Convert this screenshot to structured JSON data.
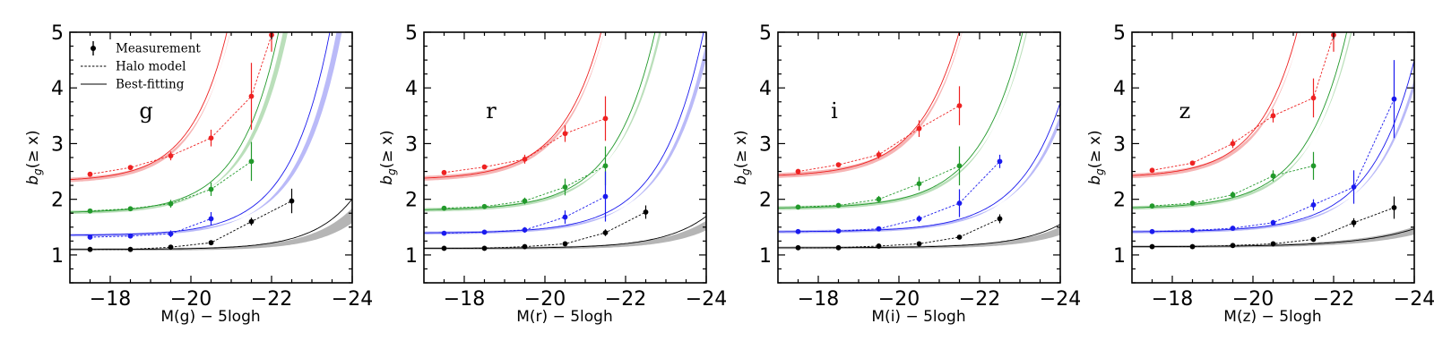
{
  "figure": {
    "ylabel_main": "b",
    "ylabel_sub": "g",
    "ylabel_rest": "(≥ x)",
    "legend": {
      "measurement": "Measurement",
      "halo": "Halo model",
      "best": "Best-fitting"
    }
  },
  "colors": {
    "red": "#ee2222",
    "green": "#22992b",
    "blue": "#1a1aee",
    "black": "#000000",
    "band_red": "#f4a0a0",
    "band_green": "#a6d6a6",
    "band_blue": "#a6a6f6",
    "band_black": "#a0a0a0"
  },
  "chart_data": [
    {
      "type": "line",
      "band": "g",
      "title": "",
      "xlabel": "M(g) − 5logh",
      "ylabel": "b_g(≥ x)",
      "xlim": [
        -17,
        -24
      ],
      "ylim": [
        0.5,
        5
      ],
      "xticks": [
        -18,
        -20,
        -22,
        -24
      ],
      "xtick_labels": [
        "−18",
        "−20",
        "−22",
        "−24"
      ],
      "yticks": [
        1,
        2,
        3,
        4,
        5
      ],
      "ytick_labels": [
        "1",
        "2",
        "3",
        "4",
        "5"
      ],
      "series": [
        {
          "name": "red",
          "color": "red",
          "band_color": "band_red",
          "x": [
            -17.5,
            -18.5,
            -19.5,
            -20.5,
            -21.5,
            -22.0
          ],
          "y": [
            2.45,
            2.57,
            2.78,
            3.1,
            3.85,
            4.95
          ],
          "err": [
            0.03,
            0.04,
            0.08,
            0.15,
            0.6,
            0.3
          ],
          "fit": {
            "a": 2.38,
            "c": 0.06,
            "k": 1.12,
            "x0": -17.5
          },
          "band": {
            "lo_factor": 0.93,
            "hi_factor": 1.18,
            "hi_shift": 0.25
          }
        },
        {
          "name": "green",
          "color": "green",
          "band_color": "band_green",
          "x": [
            -17.5,
            -18.5,
            -19.5,
            -20.5,
            -21.5
          ],
          "y": [
            1.79,
            1.83,
            1.92,
            2.18,
            2.68
          ],
          "err": [
            0.03,
            0.04,
            0.07,
            0.12,
            0.35
          ],
          "fit": {
            "a": 1.78,
            "c": 0.024,
            "k": 1.05,
            "x0": -17.5
          },
          "band": {
            "lo_factor": 0.9,
            "hi_factor": 1.25,
            "hi_shift": 0.45
          }
        },
        {
          "name": "blue",
          "color": "blue",
          "band_color": "band_blue",
          "x": [
            -17.5,
            -18.5,
            -19.5,
            -20.5
          ],
          "y": [
            1.32,
            1.34,
            1.38,
            1.65
          ],
          "err": [
            0.02,
            0.03,
            0.06,
            0.12
          ],
          "fit": {
            "a": 1.36,
            "c": 0.0085,
            "k": 1.02,
            "x0": -17.5
          },
          "band": {
            "lo_factor": 0.85,
            "hi_factor": 1.35,
            "hi_shift": 0.6
          }
        },
        {
          "name": "black",
          "color": "black",
          "band_color": "band_black",
          "x": [
            -17.5,
            -18.5,
            -19.5,
            -20.5,
            -21.5,
            -22.5
          ],
          "y": [
            1.1,
            1.1,
            1.14,
            1.22,
            1.6,
            1.97
          ],
          "err": [
            0.02,
            0.02,
            0.03,
            0.04,
            0.07,
            0.22
          ],
          "fit": {
            "a": 1.1,
            "c": 0.0012,
            "k": 1.02,
            "x0": -17.5
          },
          "band": {
            "lo_factor": 0.55,
            "hi_factor": 1.8,
            "hi_shift": 0.8
          }
        }
      ]
    },
    {
      "type": "line",
      "band": "r",
      "title": "",
      "xlabel": "M(r) − 5logh",
      "ylabel": "b_g(≥ x)",
      "xlim": [
        -17,
        -24
      ],
      "ylim": [
        0.5,
        5
      ],
      "xticks": [
        -18,
        -20,
        -22,
        -24
      ],
      "xtick_labels": [
        "−18",
        "−20",
        "−22",
        "−24"
      ],
      "yticks": [
        1,
        2,
        3,
        4,
        5
      ],
      "ytick_labels": [
        "1",
        "2",
        "3",
        "4",
        "5"
      ],
      "series": [
        {
          "name": "red",
          "color": "red",
          "band_color": "band_red",
          "x": [
            -17.5,
            -18.5,
            -19.5,
            -20.5,
            -21.5
          ],
          "y": [
            2.48,
            2.58,
            2.72,
            3.18,
            3.45
          ],
          "err": [
            0.03,
            0.04,
            0.08,
            0.15,
            0.4
          ],
          "fit": {
            "a": 2.4,
            "c": 0.05,
            "k": 1.02,
            "x0": -17.5
          },
          "band": {
            "lo_factor": 0.94,
            "hi_factor": 1.12,
            "hi_shift": 0.2
          }
        },
        {
          "name": "green",
          "color": "green",
          "band_color": "band_green",
          "x": [
            -17.5,
            -18.5,
            -19.5,
            -20.5,
            -21.5
          ],
          "y": [
            1.84,
            1.87,
            1.97,
            2.22,
            2.6
          ],
          "err": [
            0.03,
            0.04,
            0.06,
            0.15,
            0.35
          ],
          "fit": {
            "a": 1.82,
            "c": 0.019,
            "k": 0.98,
            "x0": -17.5
          },
          "band": {
            "lo_factor": 0.92,
            "hi_factor": 1.2,
            "hi_shift": 0.35
          }
        },
        {
          "name": "blue",
          "color": "blue",
          "band_color": "band_blue",
          "x": [
            -17.5,
            -18.5,
            -19.5,
            -20.5,
            -21.5
          ],
          "y": [
            1.39,
            1.41,
            1.45,
            1.68,
            2.05
          ],
          "err": [
            0.02,
            0.03,
            0.05,
            0.12,
            0.45
          ],
          "fit": {
            "a": 1.4,
            "c": 0.008,
            "k": 0.95,
            "x0": -17.5
          },
          "band": {
            "lo_factor": 0.9,
            "hi_factor": 1.3,
            "hi_shift": 0.5
          }
        },
        {
          "name": "black",
          "color": "black",
          "band_color": "band_black",
          "x": [
            -17.5,
            -18.5,
            -19.5,
            -20.5,
            -21.5,
            -22.5
          ],
          "y": [
            1.12,
            1.12,
            1.15,
            1.2,
            1.4,
            1.77
          ],
          "err": [
            0.02,
            0.02,
            0.03,
            0.04,
            0.06,
            0.12
          ],
          "fit": {
            "a": 1.12,
            "c": 0.0012,
            "k": 0.95,
            "x0": -17.5
          },
          "band": {
            "lo_factor": 0.6,
            "hi_factor": 1.6,
            "hi_shift": 0.7
          }
        }
      ]
    },
    {
      "type": "line",
      "band": "i",
      "title": "",
      "xlabel": "M(i) − 5logh",
      "ylabel": "b_g(≥ x)",
      "xlim": [
        -17,
        -24
      ],
      "ylim": [
        0.5,
        5
      ],
      "xticks": [
        -18,
        -20,
        -22,
        -24
      ],
      "xtick_labels": [
        "−18",
        "−20",
        "−22",
        "−24"
      ],
      "yticks": [
        1,
        2,
        3,
        4,
        5
      ],
      "ytick_labels": [
        "1",
        "2",
        "3",
        "4",
        "5"
      ],
      "series": [
        {
          "name": "red",
          "color": "red",
          "band_color": "band_red",
          "x": [
            -17.5,
            -18.5,
            -19.5,
            -20.5,
            -21.5
          ],
          "y": [
            2.5,
            2.62,
            2.8,
            3.27,
            3.68
          ],
          "err": [
            0.03,
            0.04,
            0.07,
            0.15,
            0.35
          ],
          "fit": {
            "a": 2.45,
            "c": 0.048,
            "k": 1.0,
            "x0": -17.5
          },
          "band": {
            "lo_factor": 0.94,
            "hi_factor": 1.12,
            "hi_shift": 0.2
          }
        },
        {
          "name": "green",
          "color": "green",
          "band_color": "band_green",
          "x": [
            -17.5,
            -18.5,
            -19.5,
            -20.5,
            -21.5
          ],
          "y": [
            1.86,
            1.89,
            2.0,
            2.28,
            2.6
          ],
          "err": [
            0.03,
            0.04,
            0.06,
            0.12,
            0.35
          ],
          "fit": {
            "a": 1.85,
            "c": 0.016,
            "k": 0.95,
            "x0": -17.5
          },
          "band": {
            "lo_factor": 0.93,
            "hi_factor": 1.18,
            "hi_shift": 0.3
          }
        },
        {
          "name": "blue",
          "color": "blue",
          "band_color": "band_blue",
          "x": [
            -17.5,
            -18.5,
            -19.5,
            -20.5,
            -21.5,
            -22.5
          ],
          "y": [
            1.42,
            1.43,
            1.47,
            1.65,
            1.93,
            2.68
          ],
          "err": [
            0.02,
            0.03,
            0.04,
            0.06,
            0.25,
            0.12
          ],
          "fit": {
            "a": 1.42,
            "c": 0.0055,
            "k": 0.93,
            "x0": -17.5
          },
          "band": {
            "lo_factor": 0.92,
            "hi_factor": 1.2,
            "hi_shift": 0.4
          }
        },
        {
          "name": "black",
          "color": "black",
          "band_color": "band_black",
          "x": [
            -17.5,
            -18.5,
            -19.5,
            -20.5,
            -21.5,
            -22.5
          ],
          "y": [
            1.13,
            1.13,
            1.16,
            1.2,
            1.32,
            1.65
          ],
          "err": [
            0.02,
            0.02,
            0.02,
            0.03,
            0.04,
            0.08
          ],
          "fit": {
            "a": 1.13,
            "c": 0.001,
            "k": 0.93,
            "x0": -17.5
          },
          "band": {
            "lo_factor": 0.6,
            "hi_factor": 1.6,
            "hi_shift": 0.7
          }
        }
      ]
    },
    {
      "type": "line",
      "band": "z",
      "title": "",
      "xlabel": "M(z) − 5logh",
      "ylabel": "b_g(≥ x)",
      "xlim": [
        -17,
        -24
      ],
      "ylim": [
        0.5,
        5
      ],
      "xticks": [
        -18,
        -20,
        -22,
        -24
      ],
      "xtick_labels": [
        "−18",
        "−20",
        "−22",
        "−24"
      ],
      "yticks": [
        1,
        2,
        3,
        4,
        5
      ],
      "ytick_labels": [
        "1",
        "2",
        "3",
        "4",
        "5"
      ],
      "series": [
        {
          "name": "red",
          "color": "red",
          "band_color": "band_red",
          "x": [
            -17.5,
            -18.5,
            -19.5,
            -20.5,
            -21.5,
            -22.0
          ],
          "y": [
            2.52,
            2.65,
            3.0,
            3.5,
            3.82,
            4.95
          ],
          "err": [
            0.03,
            0.04,
            0.08,
            0.12,
            0.35,
            0.3
          ],
          "fit": {
            "a": 2.45,
            "c": 0.06,
            "k": 1.05,
            "x0": -17.5
          },
          "band": {
            "lo_factor": 0.93,
            "hi_factor": 1.13,
            "hi_shift": 0.22
          }
        },
        {
          "name": "green",
          "color": "green",
          "band_color": "band_green",
          "x": [
            -17.5,
            -18.5,
            -19.5,
            -20.5,
            -21.5
          ],
          "y": [
            1.88,
            1.93,
            2.08,
            2.42,
            2.6
          ],
          "err": [
            0.03,
            0.04,
            0.06,
            0.1,
            0.25
          ],
          "fit": {
            "a": 1.86,
            "c": 0.028,
            "k": 0.98,
            "x0": -17.5
          },
          "band": {
            "lo_factor": 0.92,
            "hi_factor": 1.17,
            "hi_shift": 0.3
          }
        },
        {
          "name": "blue",
          "color": "blue",
          "band_color": "band_blue",
          "x": [
            -17.5,
            -18.5,
            -19.5,
            -20.5,
            -21.5,
            -22.5,
            -23.5
          ],
          "y": [
            1.42,
            1.44,
            1.48,
            1.58,
            1.9,
            2.22,
            3.8
          ],
          "err": [
            0.02,
            0.02,
            0.03,
            0.05,
            0.1,
            0.3,
            0.7
          ],
          "fit": {
            "a": 1.42,
            "c": 0.0078,
            "k": 0.92,
            "x0": -17.5
          },
          "band": {
            "lo_factor": 0.9,
            "hi_factor": 1.25,
            "hi_shift": 0.45
          }
        },
        {
          "name": "black",
          "color": "black",
          "band_color": "band_black",
          "x": [
            -17.5,
            -18.5,
            -19.5,
            -20.5,
            -21.5,
            -22.5,
            -23.5
          ],
          "y": [
            1.15,
            1.15,
            1.17,
            1.2,
            1.28,
            1.58,
            1.85
          ],
          "err": [
            0.02,
            0.02,
            0.02,
            0.03,
            0.04,
            0.08,
            0.2
          ],
          "fit": {
            "a": 1.15,
            "c": 0.003,
            "k": 0.72,
            "x0": -17.5
          },
          "band": {
            "lo_factor": 0.75,
            "hi_factor": 1.3,
            "hi_shift": 0.3
          }
        }
      ]
    }
  ]
}
